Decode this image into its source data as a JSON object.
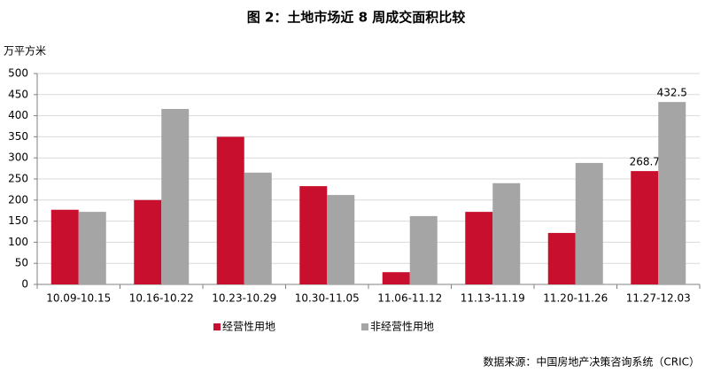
{
  "chart_data": {
    "type": "bar",
    "title": "图 2：土地市场近 8 周成交面积比较",
    "y_label": "万平方米",
    "source": "数据来源：中国房地产决策咨询系统（CRIC）",
    "categories": [
      "10.09-10.15",
      "10.16-10.22",
      "10.23-10.29",
      "10.30-11.05",
      "11.06-11.12",
      "11.13-11.19",
      "11.20-11.26",
      "11.27-12.03"
    ],
    "series": [
      {
        "name": "经营性用地",
        "color": "#c8102e",
        "values": [
          177,
          200,
          350,
          233,
          29,
          172,
          122,
          268.7
        ],
        "value_labels": [
          null,
          null,
          null,
          null,
          null,
          null,
          null,
          "268.7"
        ]
      },
      {
        "name": "非经营性用地",
        "color": "#a5a5a5",
        "values": [
          172,
          416,
          265,
          212,
          162,
          240,
          288,
          432.5
        ],
        "value_labels": [
          null,
          null,
          null,
          null,
          null,
          null,
          null,
          "432.5"
        ]
      }
    ],
    "ylim": [
      0,
      500
    ],
    "yticks": [
      0,
      50,
      100,
      150,
      200,
      250,
      300,
      350,
      400,
      450,
      500
    ],
    "grid": true
  }
}
